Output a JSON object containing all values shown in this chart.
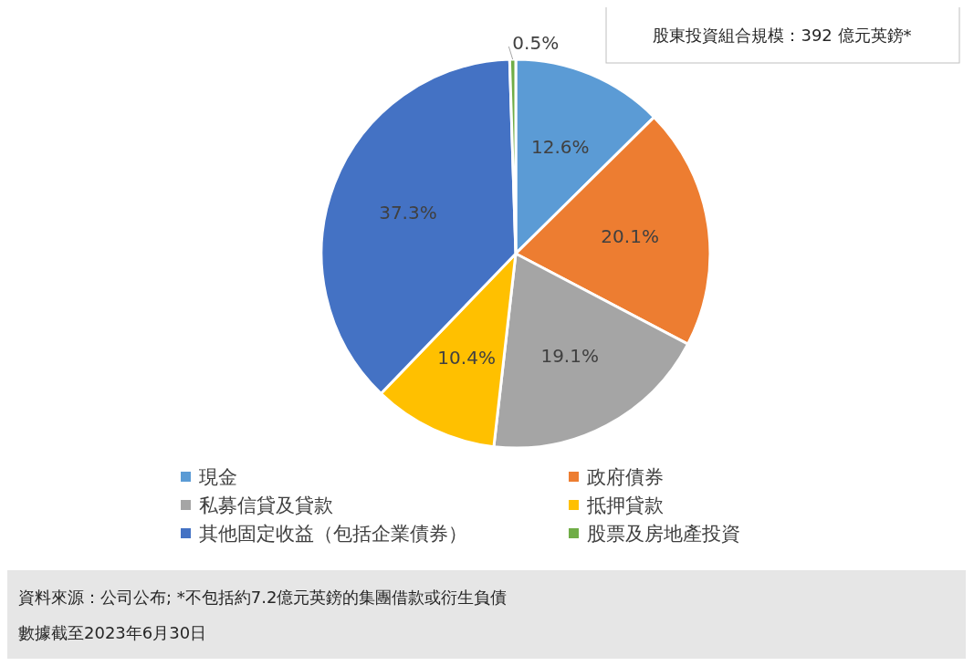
{
  "chart_data": {
    "type": "pie",
    "categories": [
      "現金",
      "政府債券",
      "私募信貸及貸款",
      "抵押貸款",
      "其他固定收益（包括企業債券）",
      "股票及房地產投資"
    ],
    "values": [
      12.6,
      20.1,
      19.1,
      10.4,
      37.3,
      0.5
    ],
    "colors": [
      "#5b9bd5",
      "#ed7d31",
      "#a5a5a5",
      "#ffc000",
      "#4472c4",
      "#70ad47"
    ],
    "value_labels": [
      "12.6%",
      "20.1%",
      "19.1%",
      "10.4%",
      "37.3%",
      "0.5%"
    ],
    "legend": "bottom",
    "annotations": [
      "股東投資組合規模：392 億元英鎊*",
      "資料來源：公司公布; *不包括約7.2億元英鎊的集團借款或衍生負債",
      "數據截至2023年6月30日"
    ]
  }
}
